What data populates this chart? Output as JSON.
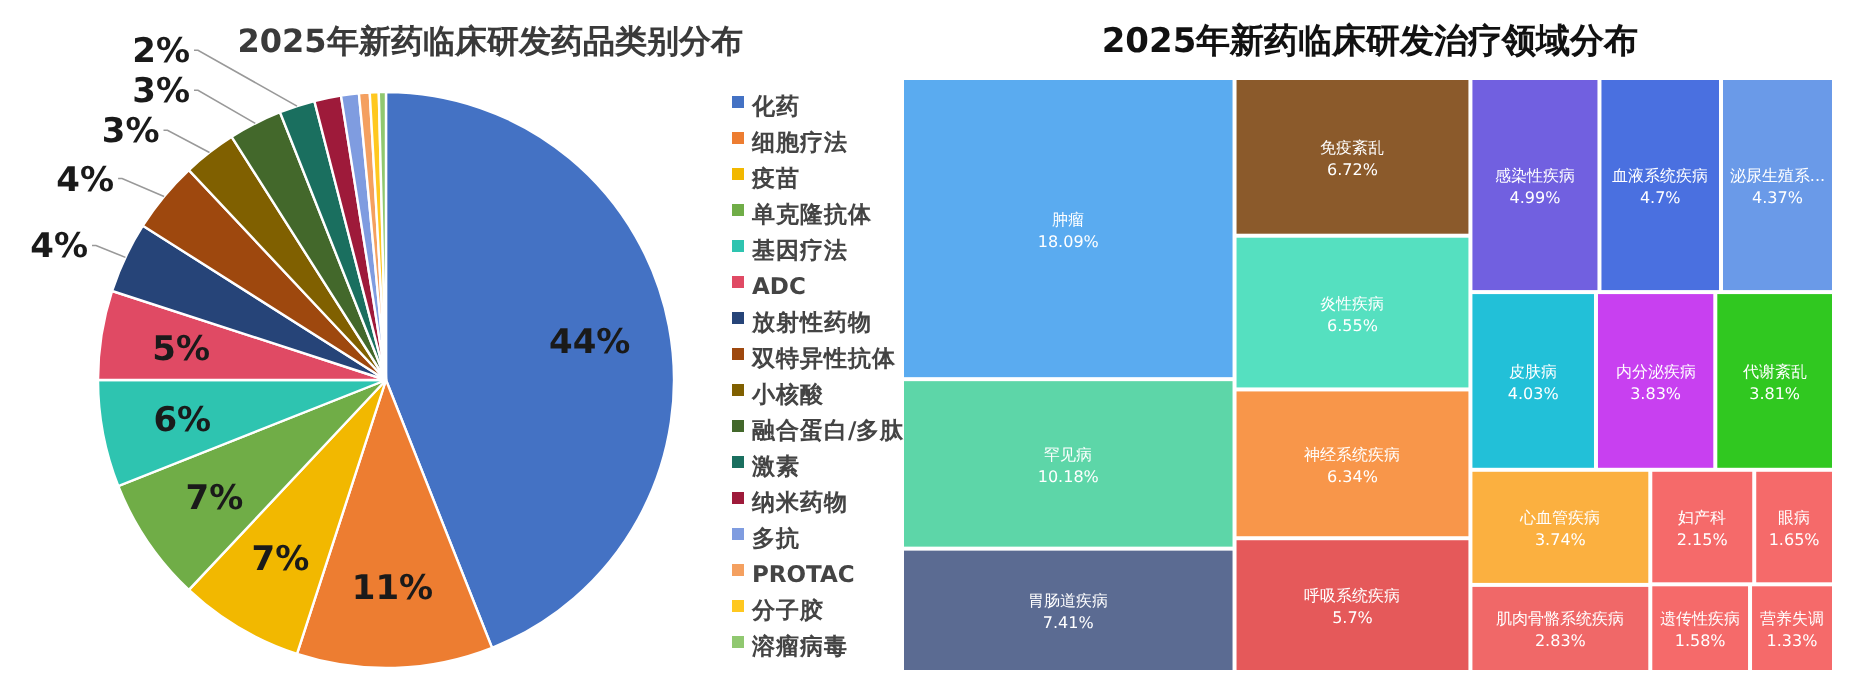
{
  "chart_data": [
    {
      "type": "pie",
      "title": "2025年新药临床研发药品类别分布",
      "legend": "right",
      "categories": [
        "化药",
        "细胞疗法",
        "疫苗",
        "单克隆抗体",
        "基因疗法",
        "ADC",
        "放射性药物",
        "双特异性抗体",
        "小核酸",
        "融合蛋白/多肽",
        "激素",
        "纳米药物",
        "多抗",
        "PROTAC",
        "分子胶",
        "溶瘤病毒"
      ],
      "values": [
        44,
        11,
        7,
        7,
        6,
        5,
        4,
        4,
        3,
        3,
        2,
        1.5,
        1,
        0.6,
        0.5,
        0.4
      ],
      "value_labels": [
        "44%",
        "11%",
        "7%",
        "7%",
        "6%",
        "5%",
        "4%",
        "4%",
        "3%",
        "3%",
        "2%",
        null,
        null,
        null,
        null,
        null
      ],
      "colors": [
        "#4472c4",
        "#ed7d31",
        "#f2b800",
        "#70ad47",
        "#2ec4b0",
        "#e04a64",
        "#264478",
        "#9e480e",
        "#806000",
        "#43682b",
        "#1a6f5f",
        "#9e1a3a",
        "#7f9ce0",
        "#f4a060",
        "#ffc820",
        "#90c870"
      ]
    },
    {
      "type": "other",
      "title": "2025年新药临床研发治疗领域分布",
      "categories": [
        "肿瘤",
        "罕见病",
        "胃肠道疾病",
        "免疫紊乱",
        "炎性疾病",
        "神经系统疾病",
        "呼吸系统疾病",
        "感染性疾病",
        "血液系统疾病",
        "泌尿生殖系...",
        "皮肤病",
        "内分泌疾病",
        "代谢紊乱",
        "心血管疾病",
        "肌肉骨骼系统疾病",
        "妇产科",
        "眼病",
        "遗传性疾病",
        "营养失调"
      ],
      "values": [
        18.09,
        10.18,
        7.41,
        6.72,
        6.55,
        6.34,
        5.7,
        4.99,
        4.7,
        4.37,
        4.03,
        3.83,
        3.81,
        3.74,
        2.83,
        2.15,
        1.65,
        1.58,
        1.33
      ],
      "value_labels": [
        "18.09%",
        "10.18%",
        "7.41%",
        "6.72%",
        "6.55%",
        "6.34%",
        "5.7%",
        "4.99%",
        "4.7%",
        "4.37%",
        "4.03%",
        "3.83%",
        "3.81%",
        "3.74%",
        "2.83%",
        "2.15%",
        "1.65%",
        "1.58%",
        "1.33%"
      ],
      "colors": [
        "#5aabf0",
        "#5dd6a8",
        "#5b6b92",
        "#8b5a2b",
        "#55e0c0",
        "#f8964a",
        "#e5595a",
        "#7160e0",
        "#4a70e0",
        "#6a9ae8",
        "#22c0d8",
        "#c840f0",
        "#30c820",
        "#fbb040",
        "#f06868",
        "#f56a6a",
        "#f56a6a",
        "#f56a6a",
        "#f56a6a"
      ]
    }
  ]
}
